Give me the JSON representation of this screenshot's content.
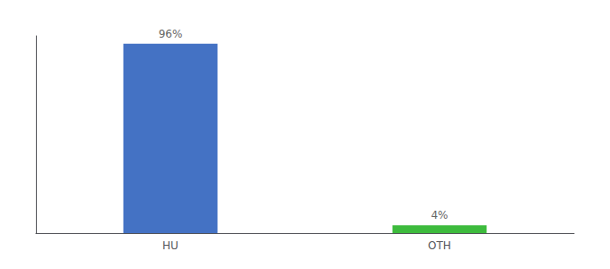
{
  "chart_data": {
    "type": "bar",
    "categories": [
      "HU",
      "OTH"
    ],
    "values": [
      96,
      4
    ],
    "value_labels": [
      "96%",
      "4%"
    ],
    "colors": [
      "#4472c4",
      "#3dbb3d"
    ],
    "ylim": [
      0,
      100
    ],
    "data_labels": true,
    "tick_labels": "x",
    "grid": false
  }
}
